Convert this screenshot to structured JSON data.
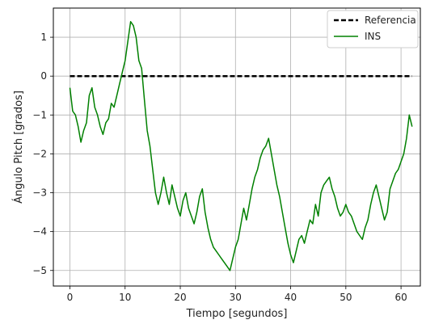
{
  "chart_data": {
    "type": "line",
    "xlabel": "Tiempo [segundos]",
    "ylabel": "Ángulo Pitch [grados]",
    "xlim": [
      -3,
      63.5
    ],
    "ylim": [
      -5.4,
      1.75
    ],
    "x_ticks": [
      0,
      10,
      20,
      30,
      40,
      50,
      60
    ],
    "x_tick_labels": [
      "0",
      "10",
      "20",
      "30",
      "40",
      "50",
      "60"
    ],
    "y_ticks": [
      1,
      0,
      -1,
      -2,
      -3,
      -4,
      -5
    ],
    "y_tick_labels": [
      "1",
      "0",
      "−1",
      "−2",
      "−3",
      "−4",
      "−5"
    ],
    "grid": true,
    "legend_position": "top-right",
    "colors": {
      "referencia": "#000000",
      "ins": "#008000"
    },
    "series": [
      {
        "name": "Referencia",
        "style": "dashed",
        "x": [
          0,
          62
        ],
        "y": [
          0,
          0
        ]
      },
      {
        "name": "INS",
        "style": "solid",
        "x": [
          0,
          0.5,
          1,
          1.5,
          2,
          2.5,
          3,
          3.5,
          4,
          4.5,
          5,
          5.5,
          6,
          6.5,
          7,
          7.5,
          8,
          8.5,
          9,
          9.5,
          10,
          10.5,
          11,
          11.5,
          12,
          12.5,
          13,
          13.5,
          14,
          14.5,
          15,
          15.5,
          16,
          16.5,
          17,
          17.5,
          18,
          18.5,
          19,
          19.5,
          20,
          20.5,
          21,
          21.5,
          22,
          22.5,
          23,
          23.5,
          24,
          24.5,
          25,
          25.5,
          26,
          26.5,
          27,
          27.5,
          28,
          28.5,
          29,
          29.5,
          30,
          30.5,
          31,
          31.5,
          32,
          32.5,
          33,
          33.5,
          34,
          34.5,
          35,
          35.5,
          36,
          36.5,
          37,
          37.5,
          38,
          38.5,
          39,
          39.5,
          40,
          40.5,
          41,
          41.5,
          42,
          42.5,
          43,
          43.5,
          44,
          44.5,
          45,
          45.5,
          46,
          46.5,
          47,
          47.5,
          48,
          48.5,
          49,
          49.5,
          50,
          50.5,
          51,
          51.5,
          52,
          52.5,
          53,
          53.5,
          54,
          54.5,
          55,
          55.5,
          56,
          56.5,
          57,
          57.5,
          58,
          58.5,
          59,
          59.5,
          60,
          60.5,
          61,
          61.5,
          62
        ],
        "y": [
          -0.3,
          -0.9,
          -1.0,
          -1.3,
          -1.7,
          -1.4,
          -1.2,
          -0.5,
          -0.3,
          -0.8,
          -1.0,
          -1.3,
          -1.5,
          -1.2,
          -1.1,
          -0.7,
          -0.8,
          -0.5,
          -0.2,
          0.1,
          0.4,
          0.9,
          1.4,
          1.3,
          1.0,
          0.4,
          0.2,
          -0.6,
          -1.4,
          -1.8,
          -2.4,
          -3.0,
          -3.3,
          -3.0,
          -2.6,
          -3.0,
          -3.3,
          -2.8,
          -3.1,
          -3.4,
          -3.6,
          -3.2,
          -3.0,
          -3.4,
          -3.6,
          -3.8,
          -3.5,
          -3.1,
          -2.9,
          -3.5,
          -3.9,
          -4.2,
          -4.4,
          -4.5,
          -4.6,
          -4.7,
          -4.8,
          -4.9,
          -5.0,
          -4.7,
          -4.4,
          -4.2,
          -3.8,
          -3.4,
          -3.7,
          -3.3,
          -2.9,
          -2.6,
          -2.4,
          -2.1,
          -1.9,
          -1.8,
          -1.6,
          -2.0,
          -2.4,
          -2.8,
          -3.1,
          -3.5,
          -3.9,
          -4.3,
          -4.6,
          -4.8,
          -4.5,
          -4.2,
          -4.1,
          -4.3,
          -4.0,
          -3.7,
          -3.8,
          -3.3,
          -3.6,
          -3.0,
          -2.8,
          -2.7,
          -2.6,
          -2.9,
          -3.1,
          -3.4,
          -3.6,
          -3.5,
          -3.3,
          -3.5,
          -3.6,
          -3.8,
          -4.0,
          -4.1,
          -4.2,
          -3.9,
          -3.7,
          -3.3,
          -3.0,
          -2.8,
          -3.1,
          -3.4,
          -3.7,
          -3.5,
          -2.9,
          -2.7,
          -2.5,
          -2.4,
          -2.2,
          -2.0,
          -1.6,
          -1.0,
          -1.3
        ]
      }
    ]
  }
}
